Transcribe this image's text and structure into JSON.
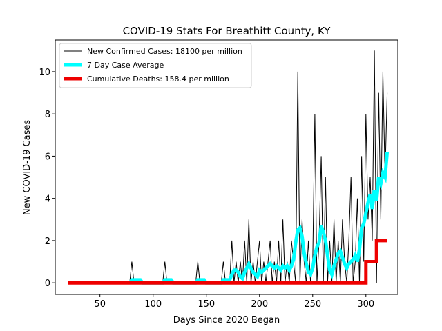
{
  "chart_data": {
    "type": "line",
    "title": "COVID-19 Stats For Breathitt County, KY",
    "xlabel": "Days Since 2020 Began",
    "ylabel": "New COVID-19 Cases",
    "xlim": [
      8,
      330
    ],
    "ylim": [
      -0.55,
      11.5
    ],
    "xticks": [
      50,
      100,
      150,
      200,
      250,
      300
    ],
    "yticks": [
      0,
      2,
      4,
      6,
      8,
      10
    ],
    "grid": false,
    "legend_position": "top-left",
    "series": [
      {
        "name": "New Confirmed Cases: 18100 per million",
        "color": "#000000",
        "style": "thin",
        "x": [
          20,
          78,
          80,
          82,
          109,
          111,
          113,
          140,
          142,
          144,
          164,
          166,
          168,
          172,
          174,
          176,
          178,
          180,
          182,
          184,
          186,
          188,
          190,
          192,
          194,
          196,
          198,
          200,
          202,
          204,
          206,
          208,
          210,
          212,
          214,
          216,
          218,
          220,
          222,
          224,
          226,
          228,
          230,
          232,
          234,
          236,
          238,
          240,
          242,
          244,
          246,
          248,
          250,
          252,
          254,
          256,
          258,
          260,
          262,
          264,
          266,
          268,
          270,
          272,
          274,
          276,
          278,
          280,
          282,
          284,
          286,
          288,
          290,
          292,
          294,
          296,
          298,
          300,
          302,
          304,
          306,
          308,
          310,
          312,
          314,
          316,
          318,
          320
        ],
        "y": [
          0,
          0,
          1,
          0,
          0,
          1,
          0,
          0,
          1,
          0,
          0,
          1,
          0,
          0,
          2,
          0,
          1,
          0,
          1,
          0,
          2,
          0,
          3,
          0,
          1,
          0,
          1,
          2,
          0,
          1,
          0,
          1,
          2,
          0,
          1,
          0,
          2,
          0,
          3,
          0,
          1,
          0,
          2,
          1,
          0,
          10,
          0,
          3,
          1,
          0,
          2,
          0,
          1,
          8,
          0,
          2,
          6,
          0,
          5,
          0,
          2,
          0,
          3,
          0,
          2,
          0,
          3,
          1,
          0,
          2,
          5,
          0,
          1,
          4,
          0,
          6,
          1,
          8,
          3,
          5,
          2,
          11,
          0,
          9,
          3,
          10,
          5,
          9
        ]
      },
      {
        "name": "7 Day Case Average",
        "color": "#00ffff",
        "style": "thick",
        "x": [
          78,
          80,
          82,
          84,
          86,
          88,
          90,
          109,
          111,
          113,
          115,
          117,
          119,
          140,
          142,
          144,
          146,
          148,
          150,
          164,
          166,
          168,
          170,
          172,
          174,
          176,
          178,
          180,
          182,
          184,
          186,
          188,
          190,
          192,
          194,
          196,
          198,
          200,
          202,
          204,
          206,
          208,
          210,
          212,
          214,
          216,
          218,
          220,
          222,
          224,
          226,
          228,
          230,
          232,
          234,
          236,
          238,
          240,
          242,
          244,
          246,
          248,
          250,
          252,
          254,
          256,
          258,
          260,
          262,
          264,
          266,
          268,
          270,
          272,
          274,
          276,
          278,
          280,
          282,
          284,
          286,
          288,
          290,
          292,
          294,
          296,
          298,
          300,
          302,
          304,
          306,
          308,
          310,
          312,
          314,
          316,
          318,
          320
        ],
        "y": [
          0,
          0.14,
          0.14,
          0.14,
          0.14,
          0.14,
          0,
          0,
          0.14,
          0.14,
          0.14,
          0.14,
          0,
          0,
          0.14,
          0.14,
          0.14,
          0.14,
          0,
          0,
          0.14,
          0.14,
          0.14,
          0.14,
          0.4,
          0.6,
          0.6,
          0.5,
          0.3,
          0.2,
          0.5,
          0.7,
          0.9,
          0.7,
          0.5,
          0.4,
          0.3,
          0.6,
          0.5,
          0.6,
          0.7,
          0.8,
          0.9,
          0.8,
          0.7,
          0.8,
          0.7,
          0.6,
          0.8,
          0.7,
          0.8,
          0.6,
          0.8,
          1.1,
          1.9,
          2.5,
          2.6,
          2.2,
          1.4,
          0.9,
          0.5,
          0.4,
          0.7,
          1.3,
          1.7,
          1.9,
          2.7,
          2.4,
          2.0,
          1.3,
          0.6,
          0.4,
          0.8,
          1.1,
          1.4,
          1.5,
          1.2,
          0.9,
          0.7,
          0.9,
          1.0,
          1.1,
          1.3,
          1.0,
          1.6,
          2.6,
          2.8,
          3.3,
          3.8,
          4.2,
          3.5,
          4.4,
          3.9,
          5.0,
          4.7,
          5.2,
          5.0,
          6.2
        ]
      },
      {
        "name": "Cumulative Deaths: 158.4 per million",
        "color": "#ee0000",
        "style": "thick",
        "x": [
          20,
          300,
          300,
          310,
          310,
          320
        ],
        "y": [
          0,
          0,
          1,
          1,
          2,
          2
        ]
      }
    ]
  }
}
